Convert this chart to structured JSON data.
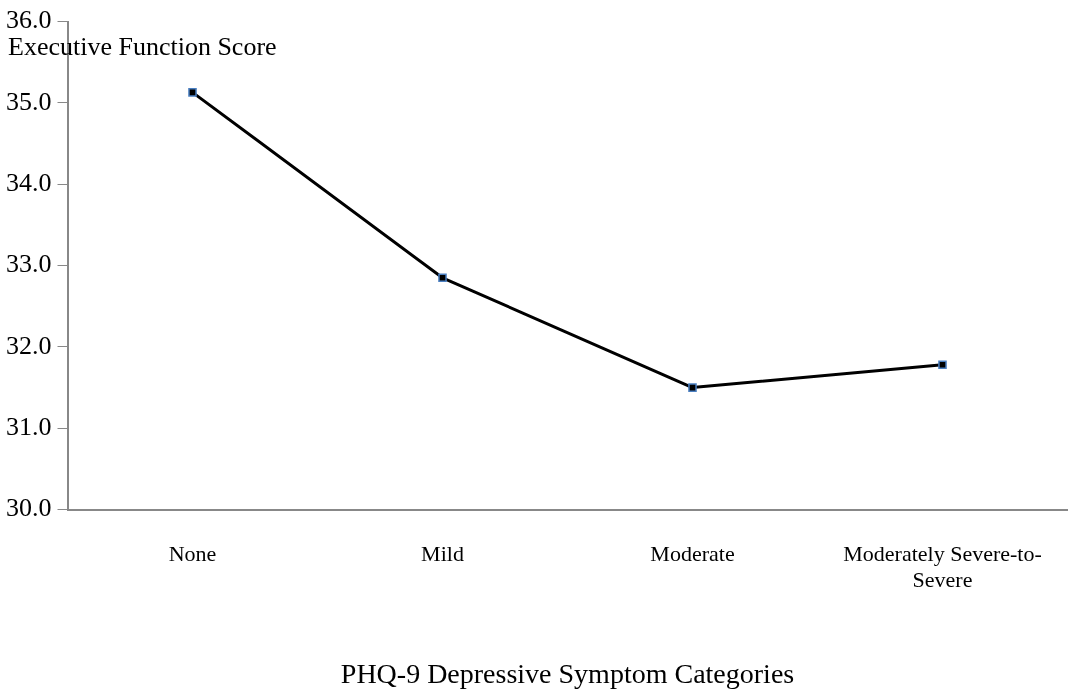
{
  "chart_data": {
    "type": "line",
    "ylabel": "Executive Function Score",
    "xlabel": "PHQ-9 Depressive Symptom Categories",
    "categories": [
      "None",
      "Mild",
      "Moderate",
      "Moderately Severe-to-Severe"
    ],
    "series": [
      {
        "color": "#000000",
        "values": [
          35.13,
          32.85,
          31.5,
          31.78
        ]
      }
    ],
    "ylim": [
      30,
      36
    ],
    "yticks": [
      {
        "value": 30,
        "label": "30.0"
      },
      {
        "value": 31,
        "label": "31.0"
      },
      {
        "value": 32,
        "label": "32.0"
      },
      {
        "value": 33,
        "label": "33.0"
      },
      {
        "value": 34,
        "label": "34.0"
      },
      {
        "value": 35,
        "label": "35.0"
      },
      {
        "value": 36,
        "label": "36.0"
      }
    ],
    "grid": false,
    "legend": false,
    "marker": "square",
    "line_style": "solid"
  }
}
